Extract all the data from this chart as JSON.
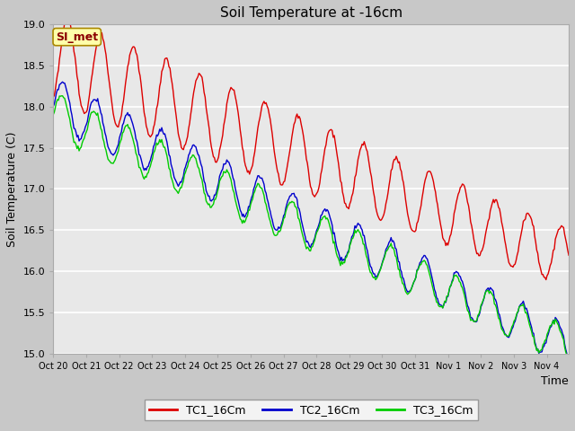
{
  "title": "Soil Temperature at -16cm",
  "ylabel": "Soil Temperature (C)",
  "xlabel": "Time",
  "ylim": [
    15.0,
    19.0
  ],
  "yticks": [
    15.0,
    15.5,
    16.0,
    16.5,
    17.0,
    17.5,
    18.0,
    18.5,
    19.0
  ],
  "legend_labels": [
    "TC1_16Cm",
    "TC2_16Cm",
    "TC3_16Cm"
  ],
  "legend_colors": [
    "#dd0000",
    "#0000cc",
    "#00cc00"
  ],
  "si_met_label": "SI_met",
  "fig_facecolor": "#c8c8c8",
  "ax_facecolor": "#e8e8e8",
  "xtick_labels": [
    "Oct 20",
    "Oct 21",
    "Oct 22",
    "Oct 23",
    "Oct 24",
    "Oct 25",
    "Oct 26",
    "Oct 27",
    "Oct 28",
    "Oct 29",
    "Oct 30",
    "Oct 31",
    "Nov 1",
    "Nov 2",
    "Nov 3",
    "Nov 4"
  ],
  "n_points": 500,
  "end_day": 15.67
}
